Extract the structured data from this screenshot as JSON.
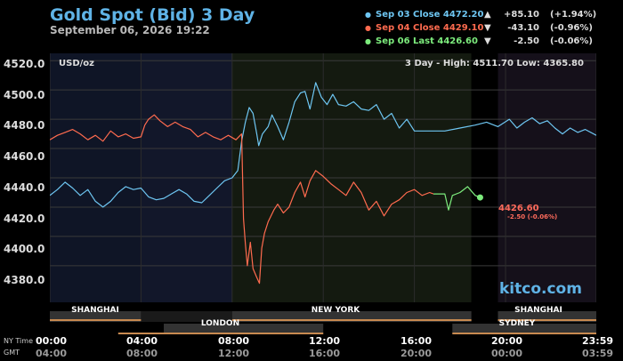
{
  "header": {
    "title": "Gold Spot (Bid) 3 Day",
    "datetime": "September 06, 2026 19:22"
  },
  "legend": [
    {
      "label": "Sep 03 Close",
      "price": "4472.20",
      "arrow": "▲",
      "change": "+85.10",
      "pct": "(+1.94%)",
      "color": "#6ec6f2"
    },
    {
      "label": "Sep 04 Close",
      "price": "4429.10",
      "arrow": "▼",
      "change": "-43.10",
      "pct": "(-0.96%)",
      "color": "#ff6b4f"
    },
    {
      "label": "Sep 06 Last",
      "price": "4426.60",
      "arrow": "▼",
      "change": "-2.50",
      "pct": "(-0.06%)",
      "color": "#7dec7d"
    }
  ],
  "plot": {
    "unit_label": "USD/oz",
    "range_label": "3 Day - High: 4511.70  Low: 4365.80",
    "last_price_label": "4426.60",
    "last_change_label": "-2.50 (-0.06%)",
    "watermark": "kitco.com"
  },
  "axis": {
    "ny_time_label": "NY Time",
    "gmt_label": "GMT"
  },
  "sessions": [
    {
      "name": "SHANGHAI",
      "row": 1
    },
    {
      "name": "NEW YORK",
      "row": 1
    },
    {
      "name": "SHANGHAI",
      "row": 1
    },
    {
      "name": "LONDON",
      "row": 2
    },
    {
      "name": "SYDNEY",
      "row": 2
    }
  ],
  "chart_data": {
    "type": "line",
    "ylim": [
      4355,
      4525
    ],
    "xlim": [
      0,
      1439
    ],
    "yticks": [
      "4520.0",
      "4500.0",
      "4480.0",
      "4460.0",
      "4440.0",
      "4420.0",
      "4400.0",
      "4380.0"
    ],
    "ytick_values": [
      4520,
      4500,
      4480,
      4460,
      4440,
      4420,
      4400,
      4380
    ],
    "xticks_ny": [
      "00:00",
      "04:00",
      "08:00",
      "12:00",
      "16:00",
      "20:00",
      "23:59"
    ],
    "xticks_gmt": [
      "04:00",
      "08:00",
      "12:00",
      "16:00",
      "20:00",
      "00:00",
      "03:59"
    ],
    "xtick_minutes": [
      0,
      240,
      480,
      720,
      960,
      1200,
      1439
    ],
    "series": [
      {
        "name": "Sep 03 Close",
        "color": "#6ec6f2",
        "points": [
          [
            0,
            4428
          ],
          [
            20,
            4432
          ],
          [
            40,
            4437
          ],
          [
            60,
            4433
          ],
          [
            80,
            4428
          ],
          [
            100,
            4432
          ],
          [
            120,
            4424
          ],
          [
            140,
            4420
          ],
          [
            160,
            4424
          ],
          [
            180,
            4430
          ],
          [
            200,
            4434
          ],
          [
            220,
            4432
          ],
          [
            240,
            4433
          ],
          [
            260,
            4427
          ],
          [
            280,
            4425
          ],
          [
            300,
            4426
          ],
          [
            320,
            4429
          ],
          [
            340,
            4432
          ],
          [
            360,
            4429
          ],
          [
            380,
            4424
          ],
          [
            400,
            4423
          ],
          [
            420,
            4428
          ],
          [
            440,
            4433
          ],
          [
            460,
            4438
          ],
          [
            480,
            4440
          ],
          [
            495,
            4445
          ],
          [
            505,
            4465
          ],
          [
            515,
            4478
          ],
          [
            525,
            4488
          ],
          [
            535,
            4484
          ],
          [
            545,
            4470
          ],
          [
            550,
            4462
          ],
          [
            560,
            4470
          ],
          [
            575,
            4475
          ],
          [
            585,
            4483
          ],
          [
            600,
            4475
          ],
          [
            615,
            4466
          ],
          [
            630,
            4478
          ],
          [
            645,
            4492
          ],
          [
            660,
            4498
          ],
          [
            672,
            4499
          ],
          [
            685,
            4487
          ],
          [
            700,
            4505
          ],
          [
            715,
            4495
          ],
          [
            730,
            4490
          ],
          [
            745,
            4497
          ],
          [
            760,
            4490
          ],
          [
            780,
            4489
          ],
          [
            800,
            4492
          ],
          [
            820,
            4487
          ],
          [
            840,
            4486
          ],
          [
            860,
            4490
          ],
          [
            880,
            4480
          ],
          [
            900,
            4484
          ],
          [
            920,
            4474
          ],
          [
            940,
            4480
          ],
          [
            960,
            4472
          ],
          [
            1000,
            4472
          ],
          [
            1040,
            4472
          ],
          [
            1080,
            4474
          ],
          [
            1120,
            4476
          ],
          [
            1150,
            4478
          ],
          [
            1180,
            4475
          ],
          [
            1210,
            4480
          ],
          [
            1230,
            4474
          ],
          [
            1250,
            4478
          ],
          [
            1270,
            4481
          ],
          [
            1290,
            4477
          ],
          [
            1310,
            4479
          ],
          [
            1330,
            4474
          ],
          [
            1350,
            4470
          ],
          [
            1370,
            4474
          ],
          [
            1390,
            4471
          ],
          [
            1410,
            4473
          ],
          [
            1439,
            4469
          ]
        ]
      },
      {
        "name": "Sep 04 Close",
        "color": "#ff6b4f",
        "points": [
          [
            0,
            4466
          ],
          [
            20,
            4469
          ],
          [
            40,
            4471
          ],
          [
            60,
            4473
          ],
          [
            80,
            4470
          ],
          [
            100,
            4466
          ],
          [
            120,
            4469
          ],
          [
            140,
            4465
          ],
          [
            160,
            4472
          ],
          [
            180,
            4468
          ],
          [
            200,
            4470
          ],
          [
            220,
            4467
          ],
          [
            240,
            4468
          ],
          [
            250,
            4476
          ],
          [
            260,
            4480
          ],
          [
            275,
            4483
          ],
          [
            290,
            4479
          ],
          [
            310,
            4475
          ],
          [
            330,
            4478
          ],
          [
            350,
            4475
          ],
          [
            370,
            4473
          ],
          [
            390,
            4468
          ],
          [
            410,
            4471
          ],
          [
            430,
            4468
          ],
          [
            450,
            4466
          ],
          [
            470,
            4469
          ],
          [
            490,
            4466
          ],
          [
            505,
            4470
          ],
          [
            510,
            4412
          ],
          [
            515,
            4395
          ],
          [
            520,
            4380
          ],
          [
            528,
            4396
          ],
          [
            535,
            4378
          ],
          [
            545,
            4372
          ],
          [
            552,
            4368
          ],
          [
            558,
            4392
          ],
          [
            565,
            4402
          ],
          [
            575,
            4410
          ],
          [
            590,
            4418
          ],
          [
            600,
            4422
          ],
          [
            615,
            4416
          ],
          [
            630,
            4420
          ],
          [
            645,
            4430
          ],
          [
            660,
            4437
          ],
          [
            672,
            4427
          ],
          [
            685,
            4438
          ],
          [
            700,
            4445
          ],
          [
            720,
            4441
          ],
          [
            740,
            4436
          ],
          [
            760,
            4432
          ],
          [
            780,
            4428
          ],
          [
            800,
            4437
          ],
          [
            820,
            4430
          ],
          [
            840,
            4418
          ],
          [
            860,
            4424
          ],
          [
            880,
            4414
          ],
          [
            900,
            4422
          ],
          [
            920,
            4425
          ],
          [
            940,
            4430
          ],
          [
            960,
            4432
          ],
          [
            980,
            4428
          ],
          [
            1000,
            4430
          ],
          [
            1010,
            4429
          ]
        ]
      },
      {
        "name": "Sep 06 Last",
        "color": "#7dec7d",
        "points": [
          [
            1010,
            4429
          ],
          [
            1040,
            4429
          ],
          [
            1050,
            4418
          ],
          [
            1060,
            4428
          ],
          [
            1080,
            4430
          ],
          [
            1100,
            4434
          ],
          [
            1110,
            4431
          ],
          [
            1120,
            4428
          ],
          [
            1133,
            4426.6
          ]
        ]
      }
    ]
  }
}
